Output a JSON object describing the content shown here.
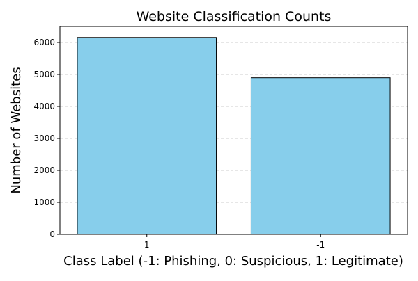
{
  "chart_data": {
    "type": "bar",
    "title": "Website Classification Counts",
    "xlabel": "Class Label (-1: Phishing, 0: Suspicious, 1: Legitimate)",
    "ylabel": "Number of Websites",
    "categories": [
      "1",
      "-1"
    ],
    "values": [
      6157,
      4898
    ],
    "ylim": [
      0,
      6500
    ],
    "yticks": [
      "0",
      "1000",
      "2000",
      "3000",
      "4000",
      "5000",
      "6000"
    ],
    "grid": "y-axis, dashed",
    "bar_color": "#87CEEB",
    "bar_edge_color": "#000000"
  }
}
